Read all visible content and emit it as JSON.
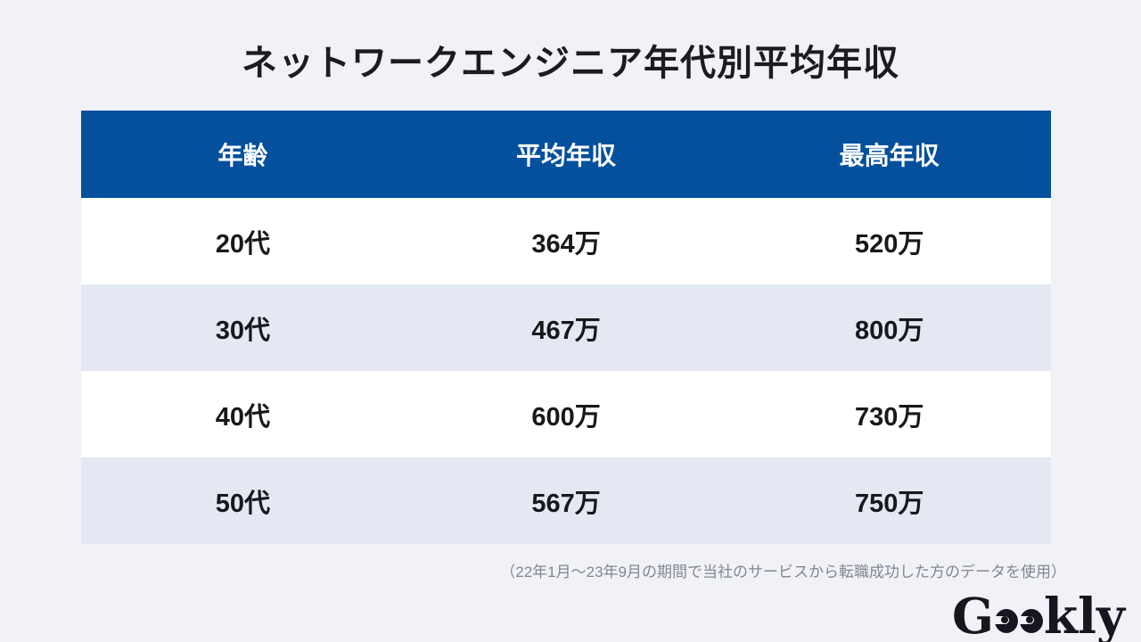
{
  "title": "ネットワークエンジニア年代別平均年収",
  "table": {
    "columns": [
      "年齢",
      "平均年収",
      "最高年収"
    ],
    "rows": [
      {
        "age": "20代",
        "avg": "364万",
        "max": "520万"
      },
      {
        "age": "30代",
        "avg": "467万",
        "max": "800万"
      },
      {
        "age": "40代",
        "avg": "600万",
        "max": "730万"
      },
      {
        "age": "50代",
        "avg": "567万",
        "max": "750万"
      }
    ]
  },
  "footnote": "（22年1月〜23年9月の期間で当社のサービスから転職成功した方のデータを使用）",
  "logo": {
    "name": "Geekly",
    "prefix": "G",
    "suffix": "kly"
  },
  "colors": {
    "page_bg": "#f1f2f8",
    "header_bg": "#04509c",
    "header_fg": "#ffffff",
    "row_alt_bg": "#e4e8f3",
    "row_bg": "#ffffff",
    "cell_fg": "#18181c",
    "footnote_fg": "#84868f",
    "logo_fg": "#16161e"
  },
  "chart_data": {
    "type": "table",
    "title": "ネットワークエンジニア年代別平均年収",
    "columns": [
      "年齢",
      "平均年収",
      "最高年収"
    ],
    "rows": [
      [
        "20代",
        "364万",
        "520万"
      ],
      [
        "30代",
        "467万",
        "800万"
      ],
      [
        "40代",
        "600万",
        "730万"
      ],
      [
        "50代",
        "567万",
        "750万"
      ]
    ],
    "values_man_yen": {
      "categories": [
        "20代",
        "30代",
        "40代",
        "50代"
      ],
      "average": [
        364,
        467,
        600,
        567
      ],
      "max": [
        520,
        800,
        730,
        750
      ]
    },
    "footnote": "（22年1月〜23年9月の期間で当社のサービスから転職成功した方のデータを使用）"
  }
}
